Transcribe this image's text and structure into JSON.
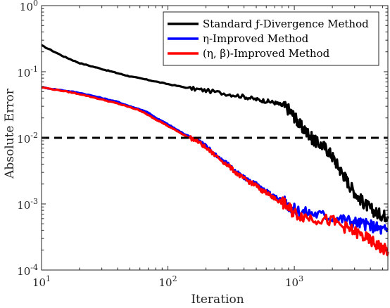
{
  "chart_data": {
    "type": "line",
    "xscale": "log",
    "yscale": "log",
    "xlabel": "Iteration",
    "ylabel": "Absolute Error",
    "xlim": [
      10,
      5500
    ],
    "ylim": [
      0.0001,
      1
    ],
    "x_ticks": [
      {
        "value": 10,
        "base": "10",
        "exp": "1"
      },
      {
        "value": 100,
        "base": "10",
        "exp": "2"
      },
      {
        "value": 1000,
        "base": "10",
        "exp": "3"
      }
    ],
    "y_ticks": [
      {
        "value": 0.0001,
        "base": "10",
        "exp": "-4"
      },
      {
        "value": 0.001,
        "base": "10",
        "exp": "-3"
      },
      {
        "value": 0.01,
        "base": "10",
        "exp": "-2"
      },
      {
        "value": 0.1,
        "base": "10",
        "exp": "-1"
      },
      {
        "value": 1,
        "base": "10",
        "exp": "0"
      }
    ],
    "grid": false,
    "legend_position": "top-right",
    "threshold": {
      "y": 0.01,
      "style": "dashed",
      "color": "#000000"
    },
    "series": [
      {
        "name": "Standard ƒ-Divergence Method",
        "color": "#000000",
        "points": [
          [
            10,
            0.25
          ],
          [
            15,
            0.17
          ],
          [
            20,
            0.135
          ],
          [
            30,
            0.11
          ],
          [
            40,
            0.095
          ],
          [
            50,
            0.085
          ],
          [
            70,
            0.075
          ],
          [
            100,
            0.065
          ],
          [
            150,
            0.056
          ],
          [
            200,
            0.052
          ],
          [
            300,
            0.046
          ],
          [
            400,
            0.042
          ],
          [
            500,
            0.038
          ],
          [
            600,
            0.036
          ],
          [
            700,
            0.034
          ],
          [
            800,
            0.031
          ],
          [
            900,
            0.027
          ],
          [
            1000,
            0.021
          ],
          [
            1100,
            0.016
          ],
          [
            1200,
            0.013
          ],
          [
            1300,
            0.0115
          ],
          [
            1400,
            0.0095
          ],
          [
            1500,
            0.0085
          ],
          [
            1700,
            0.0075
          ],
          [
            1900,
            0.006
          ],
          [
            2100,
            0.0045
          ],
          [
            2300,
            0.0033
          ],
          [
            2500,
            0.0026
          ],
          [
            2700,
            0.002
          ],
          [
            3000,
            0.0015
          ],
          [
            3300,
            0.0012
          ],
          [
            3600,
            0.001
          ],
          [
            4000,
            0.00085
          ],
          [
            4500,
            0.00072
          ],
          [
            5000,
            0.00068
          ],
          [
            5500,
            0.00065
          ]
        ]
      },
      {
        "name": "η-Improved Method",
        "color": "#0000ff",
        "points": [
          [
            10,
            0.058
          ],
          [
            15,
            0.052
          ],
          [
            20,
            0.048
          ],
          [
            30,
            0.04
          ],
          [
            40,
            0.035
          ],
          [
            50,
            0.03
          ],
          [
            60,
            0.027
          ],
          [
            70,
            0.024
          ],
          [
            80,
            0.02
          ],
          [
            90,
            0.018
          ],
          [
            100,
            0.016
          ],
          [
            120,
            0.013
          ],
          [
            140,
            0.011
          ],
          [
            170,
            0.0095
          ],
          [
            200,
            0.0075
          ],
          [
            250,
            0.0052
          ],
          [
            300,
            0.004
          ],
          [
            350,
            0.003
          ],
          [
            400,
            0.0025
          ],
          [
            450,
            0.0022
          ],
          [
            500,
            0.002
          ],
          [
            550,
            0.0017
          ],
          [
            600,
            0.0016
          ],
          [
            650,
            0.0014
          ],
          [
            700,
            0.0013
          ],
          [
            800,
            0.00115
          ],
          [
            900,
            0.00095
          ],
          [
            1000,
            0.00082
          ],
          [
            1200,
            0.00075
          ],
          [
            1500,
            0.0007
          ],
          [
            2000,
            0.00063
          ],
          [
            2500,
            0.00058
          ],
          [
            3000,
            0.00053
          ],
          [
            3500,
            0.0005
          ],
          [
            4000,
            0.00047
          ],
          [
            4500,
            0.00044
          ],
          [
            5000,
            0.0004
          ],
          [
            5500,
            0.00042
          ]
        ]
      },
      {
        "name": "(η, β)-Improved Method",
        "color": "#ff0000",
        "points": [
          [
            10,
            0.058
          ],
          [
            15,
            0.051
          ],
          [
            20,
            0.046
          ],
          [
            30,
            0.038
          ],
          [
            40,
            0.033
          ],
          [
            50,
            0.029
          ],
          [
            60,
            0.026
          ],
          [
            70,
            0.022
          ],
          [
            80,
            0.019
          ],
          [
            90,
            0.017
          ],
          [
            100,
            0.015
          ],
          [
            120,
            0.0125
          ],
          [
            140,
            0.0105
          ],
          [
            170,
            0.009
          ],
          [
            200,
            0.007
          ],
          [
            250,
            0.005
          ],
          [
            300,
            0.0038
          ],
          [
            350,
            0.0029
          ],
          [
            400,
            0.0024
          ],
          [
            450,
            0.0021
          ],
          [
            500,
            0.0019
          ],
          [
            550,
            0.0016
          ],
          [
            600,
            0.0015
          ],
          [
            650,
            0.0013
          ],
          [
            700,
            0.0012
          ],
          [
            800,
            0.00105
          ],
          [
            900,
            0.00088
          ],
          [
            1000,
            0.00072
          ],
          [
            1200,
            0.00065
          ],
          [
            1500,
            0.0006
          ],
          [
            2000,
            0.00055
          ],
          [
            2500,
            0.00045
          ],
          [
            3000,
            0.00038
          ],
          [
            3500,
            0.00032
          ],
          [
            4000,
            0.00028
          ],
          [
            4500,
            0.00024
          ],
          [
            5000,
            0.00021
          ],
          [
            5500,
            0.00019
          ]
        ]
      }
    ]
  }
}
